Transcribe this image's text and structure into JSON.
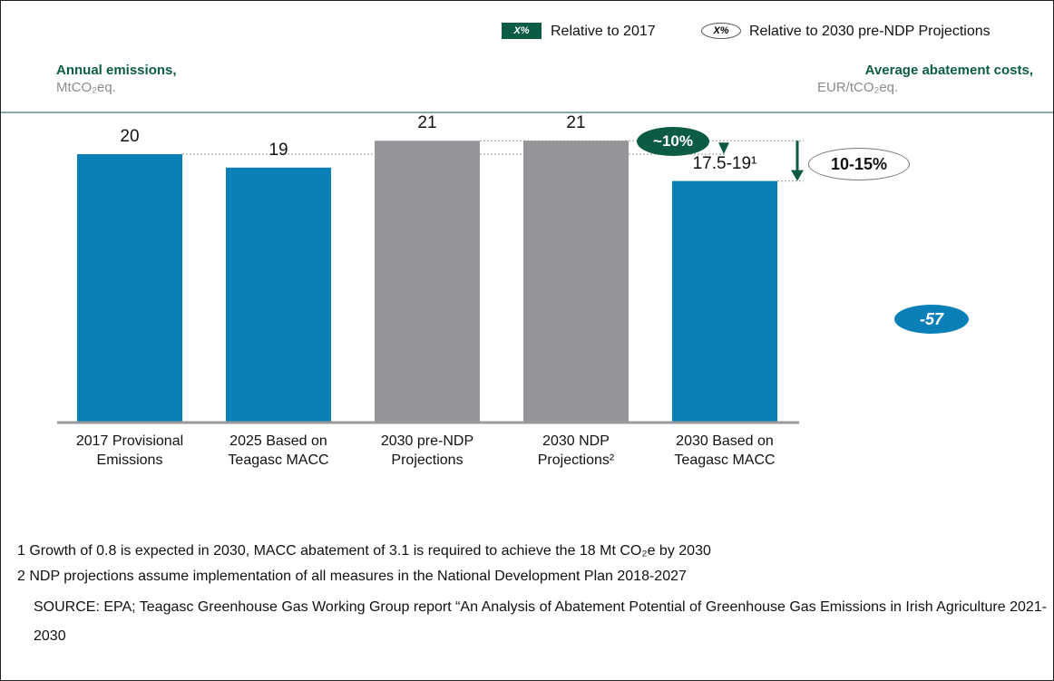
{
  "chart_data": {
    "type": "bar",
    "legend": [
      {
        "marker": "X%",
        "label": "Relative to 2017"
      },
      {
        "marker": "X%",
        "label": "Relative to 2030 pre-NDP Projections"
      }
    ],
    "left_heading": "Annual emissions,",
    "left_unit": "MtCO₂eq.",
    "right_heading": "Average abatement costs,",
    "right_unit": "EUR/tCO₂eq.",
    "categories": [
      "2017 Provisional Emissions",
      "2025 Based on Teagasc MACC",
      "2030 pre-NDP Projections",
      "2030 NDP Projections²",
      "2030 Based on Teagasc MACC"
    ],
    "values": [
      20,
      19,
      21,
      21,
      18
    ],
    "value_labels": [
      "20",
      "19",
      "21",
      "21",
      "17.5-19¹"
    ],
    "colors": [
      "#0b7fb8",
      "#0b7fb8",
      "#939598",
      "#939598",
      "#0b7fb8"
    ],
    "ylim": [
      0,
      22
    ],
    "annotations": {
      "relative_2017": "~10%",
      "relative_pre_ndp": "10-15%",
      "abatement_cost": "-57"
    },
    "footnotes": [
      "1 Growth of 0.8 is expected in 2030, MACC abatement of 3.1 is required to achieve the 18 Mt CO₂e by 2030",
      "2 NDP projections assume implementation of all measures in the National Development Plan 2018-2027",
      "SOURCE: EPA; Teagasc Greenhouse Gas Working Group report “An Analysis of Abatement Potential of Greenhouse Gas Emissions in Irish Agriculture 2021-2030"
    ]
  }
}
